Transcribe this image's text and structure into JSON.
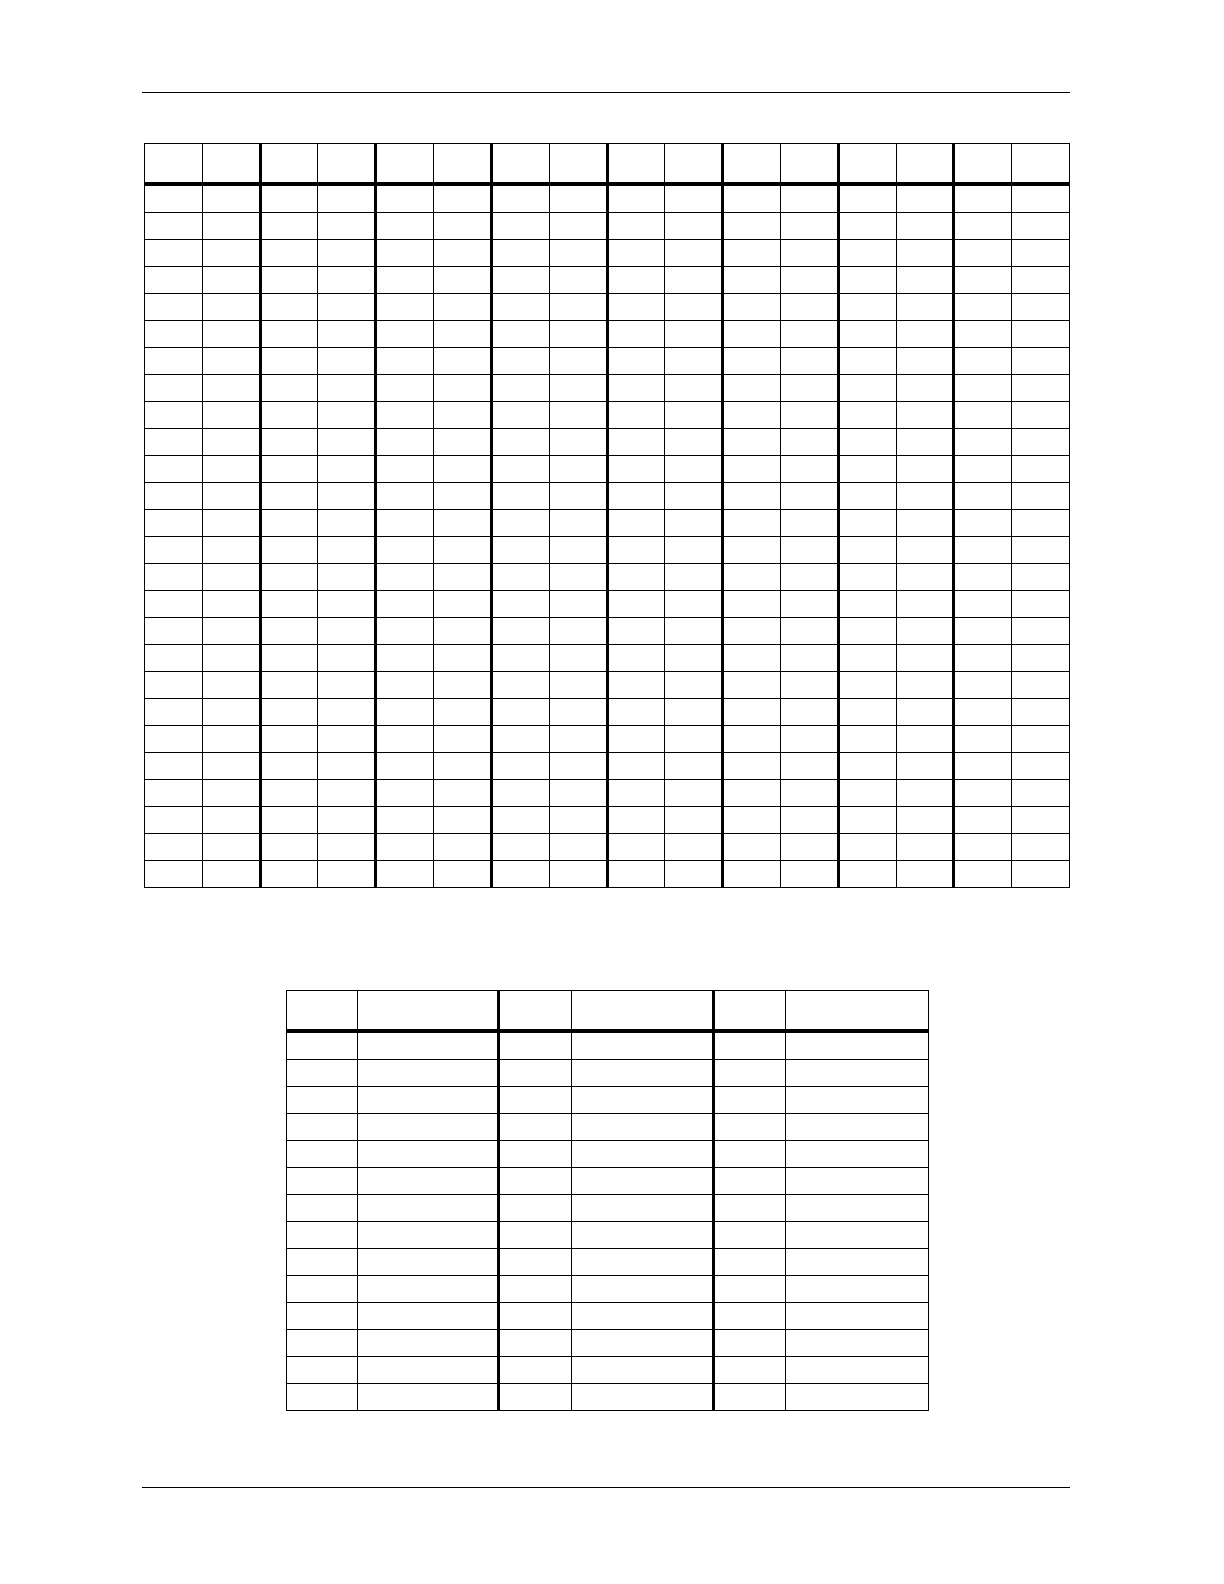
{
  "table1": {
    "header": [
      "",
      "",
      "",
      "",
      "",
      "",
      "",
      "",
      "",
      "",
      "",
      "",
      "",
      "",
      "",
      ""
    ],
    "rows": [
      [
        "",
        "",
        "",
        "",
        "",
        "",
        "",
        "",
        "",
        "",
        "",
        "",
        "",
        "",
        "",
        ""
      ],
      [
        "",
        "",
        "",
        "",
        "",
        "",
        "",
        "",
        "",
        "",
        "",
        "",
        "",
        "",
        "",
        ""
      ],
      [
        "",
        "",
        "",
        "",
        "",
        "",
        "",
        "",
        "",
        "",
        "",
        "",
        "",
        "",
        "",
        ""
      ],
      [
        "",
        "",
        "",
        "",
        "",
        "",
        "",
        "",
        "",
        "",
        "",
        "",
        "",
        "",
        "",
        ""
      ],
      [
        "",
        "",
        "",
        "",
        "",
        "",
        "",
        "",
        "",
        "",
        "",
        "",
        "",
        "",
        "",
        ""
      ],
      [
        "",
        "",
        "",
        "",
        "",
        "",
        "",
        "",
        "",
        "",
        "",
        "",
        "",
        "",
        "",
        ""
      ],
      [
        "",
        "",
        "",
        "",
        "",
        "",
        "",
        "",
        "",
        "",
        "",
        "",
        "",
        "",
        "",
        ""
      ],
      [
        "",
        "",
        "",
        "",
        "",
        "",
        "",
        "",
        "",
        "",
        "",
        "",
        "",
        "",
        "",
        ""
      ],
      [
        "",
        "",
        "",
        "",
        "",
        "",
        "",
        "",
        "",
        "",
        "",
        "",
        "",
        "",
        "",
        ""
      ],
      [
        "",
        "",
        "",
        "",
        "",
        "",
        "",
        "",
        "",
        "",
        "",
        "",
        "",
        "",
        "",
        ""
      ],
      [
        "",
        "",
        "",
        "",
        "",
        "",
        "",
        "",
        "",
        "",
        "",
        "",
        "",
        "",
        "",
        ""
      ],
      [
        "",
        "",
        "",
        "",
        "",
        "",
        "",
        "",
        "",
        "",
        "",
        "",
        "",
        "",
        "",
        ""
      ],
      [
        "",
        "",
        "",
        "",
        "",
        "",
        "",
        "",
        "",
        "",
        "",
        "",
        "",
        "",
        "",
        ""
      ],
      [
        "",
        "",
        "",
        "",
        "",
        "",
        "",
        "",
        "",
        "",
        "",
        "",
        "",
        "",
        "",
        ""
      ],
      [
        "",
        "",
        "",
        "",
        "",
        "",
        "",
        "",
        "",
        "",
        "",
        "",
        "",
        "",
        "",
        ""
      ],
      [
        "",
        "",
        "",
        "",
        "",
        "",
        "",
        "",
        "",
        "",
        "",
        "",
        "",
        "",
        "",
        ""
      ],
      [
        "",
        "",
        "",
        "",
        "",
        "",
        "",
        "",
        "",
        "",
        "",
        "",
        "",
        "",
        "",
        ""
      ],
      [
        "",
        "",
        "",
        "",
        "",
        "",
        "",
        "",
        "",
        "",
        "",
        "",
        "",
        "",
        "",
        ""
      ],
      [
        "",
        "",
        "",
        "",
        "",
        "",
        "",
        "",
        "",
        "",
        "",
        "",
        "",
        "",
        "",
        ""
      ],
      [
        "",
        "",
        "",
        "",
        "",
        "",
        "",
        "",
        "",
        "",
        "",
        "",
        "",
        "",
        "",
        ""
      ],
      [
        "",
        "",
        "",
        "",
        "",
        "",
        "",
        "",
        "",
        "",
        "",
        "",
        "",
        "",
        "",
        ""
      ],
      [
        "",
        "",
        "",
        "",
        "",
        "",
        "",
        "",
        "",
        "",
        "",
        "",
        "",
        "",
        "",
        ""
      ],
      [
        "",
        "",
        "",
        "",
        "",
        "",
        "",
        "",
        "",
        "",
        "",
        "",
        "",
        "",
        "",
        ""
      ],
      [
        "",
        "",
        "",
        "",
        "",
        "",
        "",
        "",
        "",
        "",
        "",
        "",
        "",
        "",
        "",
        ""
      ],
      [
        "",
        "",
        "",
        "",
        "",
        "",
        "",
        "",
        "",
        "",
        "",
        "",
        "",
        "",
        "",
        ""
      ],
      [
        "",
        "",
        "",
        "",
        "",
        "",
        "",
        "",
        "",
        "",
        "",
        "",
        "",
        "",
        "",
        ""
      ]
    ]
  },
  "table2": {
    "header": [
      "",
      "",
      "",
      "",
      "",
      ""
    ],
    "rows": [
      [
        "",
        "",
        "",
        "",
        "",
        ""
      ],
      [
        "",
        "",
        "",
        "",
        "",
        ""
      ],
      [
        "",
        "",
        "",
        "",
        "",
        ""
      ],
      [
        "",
        "",
        "",
        "",
        "",
        ""
      ],
      [
        "",
        "",
        "",
        "",
        "",
        ""
      ],
      [
        "",
        "",
        "",
        "",
        "",
        ""
      ],
      [
        "",
        "",
        "",
        "",
        "",
        ""
      ],
      [
        "",
        "",
        "",
        "",
        "",
        ""
      ],
      [
        "",
        "",
        "",
        "",
        "",
        ""
      ],
      [
        "",
        "",
        "",
        "",
        "",
        ""
      ],
      [
        "",
        "",
        "",
        "",
        "",
        ""
      ],
      [
        "",
        "",
        "",
        "",
        "",
        ""
      ],
      [
        "",
        "",
        "",
        "",
        "",
        ""
      ],
      [
        "",
        "",
        "",
        "",
        "",
        ""
      ]
    ]
  }
}
